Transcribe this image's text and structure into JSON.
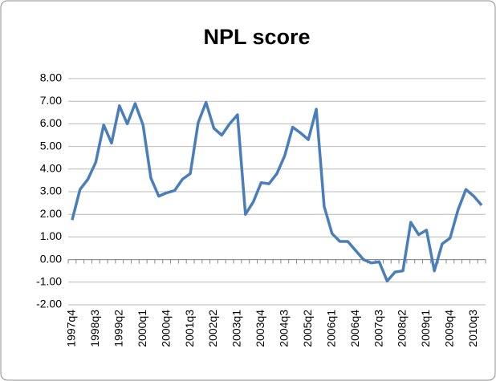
{
  "chart_data": {
    "type": "line",
    "title": "NPL score",
    "categories": [
      "1997q4",
      null,
      null,
      "1998q3",
      null,
      null,
      "1999q2",
      null,
      null,
      "2000q1",
      null,
      null,
      "2000q4",
      null,
      null,
      "2001q3",
      null,
      null,
      "2002q2",
      null,
      null,
      "2003q1",
      null,
      null,
      "2003q4",
      null,
      null,
      "2004q3",
      null,
      null,
      "2005q2",
      null,
      null,
      "2006q1",
      null,
      null,
      "2006q4",
      null,
      null,
      "2007q3",
      null,
      null,
      "2008q2",
      null,
      null,
      "2009q1",
      null,
      null,
      "2009q4",
      null,
      null,
      "2010q3",
      null
    ],
    "values": [
      1.75,
      3.1,
      3.55,
      4.3,
      5.95,
      5.15,
      6.8,
      6.0,
      6.9,
      5.95,
      3.6,
      2.8,
      2.95,
      3.05,
      3.55,
      3.8,
      6.05,
      6.95,
      5.8,
      5.5,
      6.0,
      6.4,
      2.0,
      2.55,
      3.4,
      3.35,
      3.8,
      4.6,
      5.85,
      5.6,
      5.3,
      6.65,
      2.35,
      1.15,
      0.8,
      0.8,
      0.4,
      0.0,
      -0.15,
      -0.1,
      -0.95,
      -0.55,
      -0.5,
      1.65,
      1.1,
      1.3,
      -0.5,
      0.7,
      0.95,
      2.2,
      3.1,
      2.8,
      2.4
    ],
    "color": "#4a7ebb",
    "ylim": [
      -2,
      8
    ],
    "yticks": [
      {
        "value": -2,
        "label": "-2.00"
      },
      {
        "value": -1,
        "label": "-1.00"
      },
      {
        "value": 0,
        "label": "0.00"
      },
      {
        "value": 1,
        "label": "1.00"
      },
      {
        "value": 2,
        "label": "2.00"
      },
      {
        "value": 3,
        "label": "3.00"
      },
      {
        "value": 4,
        "label": "4.00"
      },
      {
        "value": 5,
        "label": "5.00"
      },
      {
        "value": 6,
        "label": "6.00"
      },
      {
        "value": 7,
        "label": "7.00"
      },
      {
        "value": 8,
        "label": "8.00"
      }
    ],
    "grid": true
  }
}
